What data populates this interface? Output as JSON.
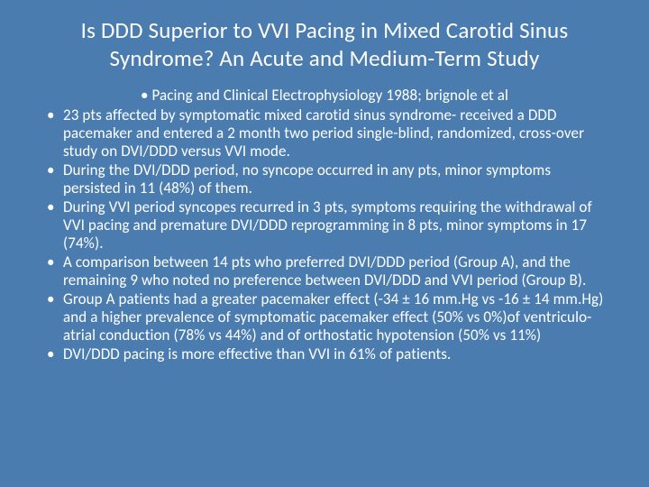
{
  "background_color": "#4a7cb0",
  "text_color": "#ffffff",
  "title_fontsize": 25,
  "body_fontsize": 17,
  "font_family": "Calibri",
  "title": "Is DDD Superior to VVI Pacing in Mixed Carotid Sinus Syndrome? An Acute and Medium-Term Study",
  "citation": "Pacing and Clinical Electrophysiology 1988; brignole et al",
  "bullets": [
    "23 pts affected by symptomatic mixed carotid sinus syndrome- received a DDD pacemaker and entered a 2 month two period single-blind, randomized, cross-over study on DVI/DDD versus VVI mode.",
    "During the DVI/DDD period, no syncope occurred in any pts, minor symptoms persisted in 11 (48%) of them.",
    "During VVI period syncopes recurred in 3 pts, symptoms requiring the withdrawal of VVI pacing and premature DVI/DDD reprogramming in 8 pts, minor symptoms in 17 (74%).",
    "A comparison between 14 pts who preferred DVI/DDD period (Group A), and the remaining 9 who noted no preference between DVI/DDD and VVI period (Group B).",
    "Group A patients had a greater pacemaker effect (-34 ± 16 mm.Hg vs -16 ± 14 mm.Hg) and a higher prevalence of symptomatic pacemaker effect (50% vs 0%)of ventriculo-atrial conduction (78% vs 44%) and of orthostatic hypotension (50% vs 11%)",
    "DVI/DDD pacing is more effective than VVI in 61% of patients."
  ]
}
